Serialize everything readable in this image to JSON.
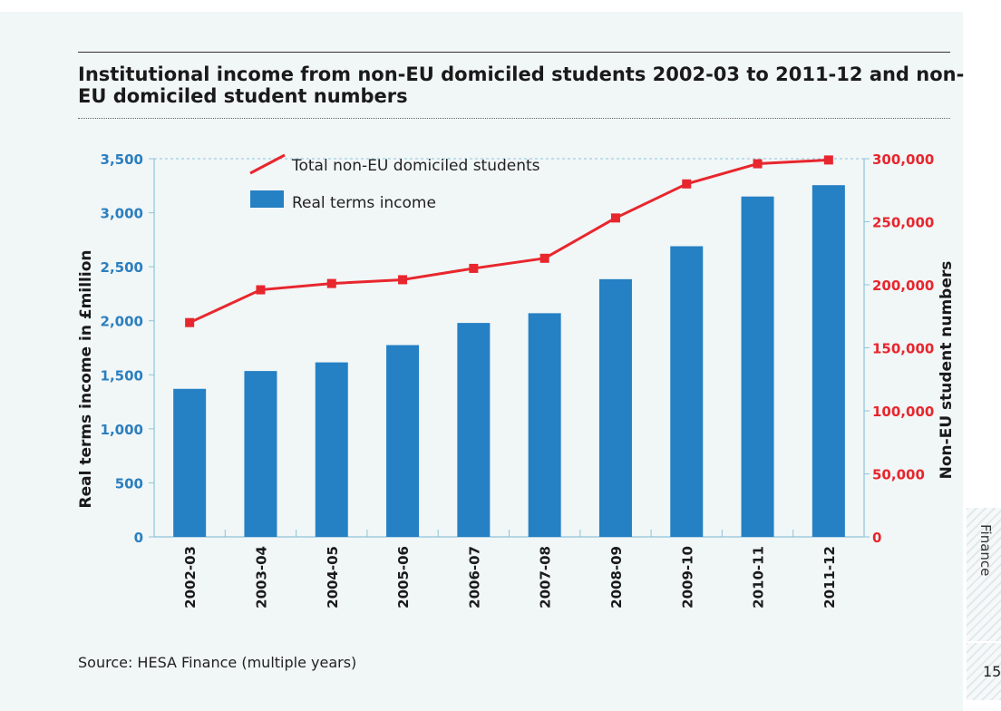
{
  "page": {
    "source": "Source: HESA Finance (multiple years)",
    "side_label": "Finance",
    "page_number": "15"
  },
  "colors": {
    "bar": "#2580c4",
    "line": "#e8262d",
    "left_axis": "#2b7fbf",
    "right_axis": "#e8262d",
    "background": "#f1f6f7"
  },
  "chart_data": {
    "type": "bar",
    "title": "Institutional income from non-EU domiciled students 2002-03 to 2011-12 and non-EU domiciled student numbers",
    "categories": [
      "2002-03",
      "2003-04",
      "2004-05",
      "2005-06",
      "2006-07",
      "2007-08",
      "2008-09",
      "2009-10",
      "2010-11",
      "2011-12"
    ],
    "series": [
      {
        "name": "Real terms income",
        "type": "bar",
        "axis": "left",
        "values": [
          1370,
          1535,
          1615,
          1775,
          1980,
          2070,
          2385,
          2690,
          3150,
          3255
        ]
      },
      {
        "name": "Total non-EU domiciled students",
        "type": "line",
        "axis": "right",
        "values": [
          170000,
          196000,
          201000,
          204000,
          213000,
          221000,
          253000,
          280000,
          296000,
          299000
        ]
      }
    ],
    "ylabel": "Real terms income in £million",
    "ylim": [
      0,
      3500
    ],
    "yticks": [
      "0",
      "500",
      "1,000",
      "1,500",
      "2,000",
      "2,500",
      "3,000",
      "3,500"
    ],
    "y2label": "Non-EU student numbers",
    "y2lim": [
      0,
      300000
    ],
    "y2ticks": [
      "0",
      "50,000",
      "100,000",
      "150,000",
      "200,000",
      "250,000",
      "300,000"
    ],
    "legend_position": "top-left",
    "grid": false
  }
}
